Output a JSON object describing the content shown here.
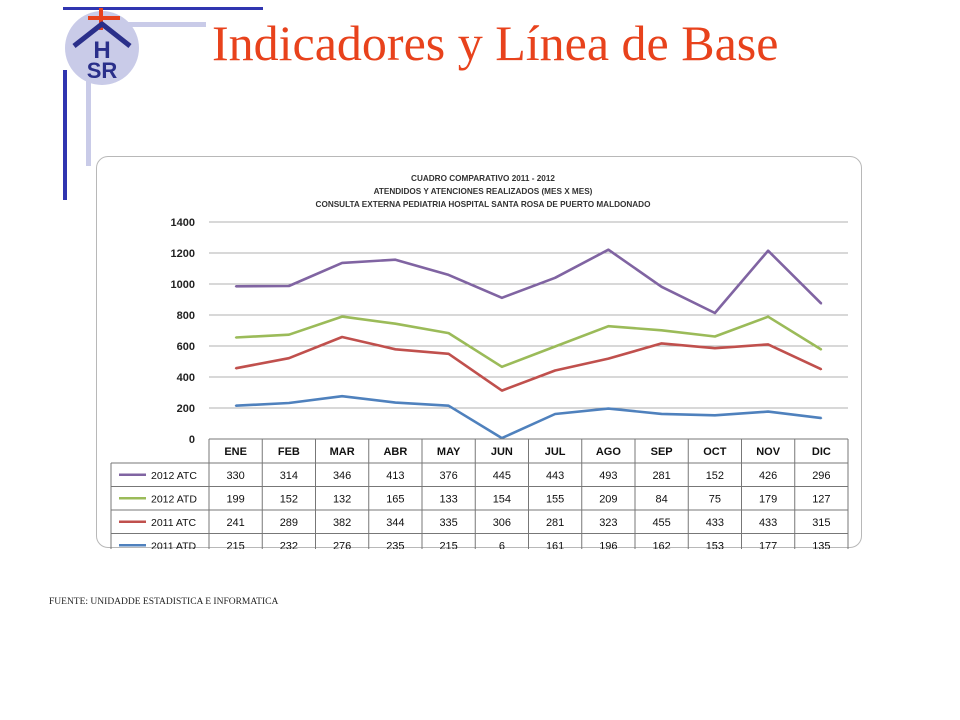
{
  "slide": {
    "title": "Indicadores y Línea de Base",
    "source": "FUENTE: UNIDADDE ESTADISTICA E INFORMATICA",
    "logo_text": [
      "H",
      "SR"
    ]
  },
  "chart_data": {
    "type": "line",
    "title": "CUADRO COMPARATIVO 2011 - 2012",
    "subtitle": "ATENDIDOS Y ATENCIONES  REALIZADOS (MES X MES)",
    "subtitle2": "CONSULTA EXTERNA PEDIATRIA HOSPITAL SANTA ROSA DE PUERTO MALDONADO",
    "xlabel": "",
    "ylabel": "",
    "ylim": [
      0,
      1400
    ],
    "yticks": [
      0,
      200,
      400,
      600,
      800,
      1000,
      1200,
      1400
    ],
    "grid": true,
    "stacked": true,
    "legend": "data-table",
    "categories": [
      "ENE",
      "FEB",
      "MAR",
      "ABR",
      "MAY",
      "JUN",
      "JUL",
      "AGO",
      "SEP",
      "OCT",
      "NOV",
      "DIC"
    ],
    "series": [
      {
        "name": "2012 ATC",
        "color": "#8064a2",
        "values": [
          330,
          314,
          346,
          413,
          376,
          445,
          443,
          493,
          281,
          152,
          426,
          296
        ]
      },
      {
        "name": "2012 ATD",
        "color": "#9bbb59",
        "values": [
          199,
          152,
          132,
          165,
          133,
          154,
          155,
          209,
          84,
          75,
          179,
          127
        ]
      },
      {
        "name": "2011 ATC",
        "color": "#c0504d",
        "values": [
          241,
          289,
          382,
          344,
          335,
          306,
          281,
          323,
          455,
          433,
          433,
          315
        ]
      },
      {
        "name": "2011 ATD",
        "color": "#4f81bd",
        "values": [
          215,
          232,
          276,
          235,
          215,
          6,
          161,
          196,
          162,
          153,
          177,
          135
        ]
      }
    ]
  }
}
